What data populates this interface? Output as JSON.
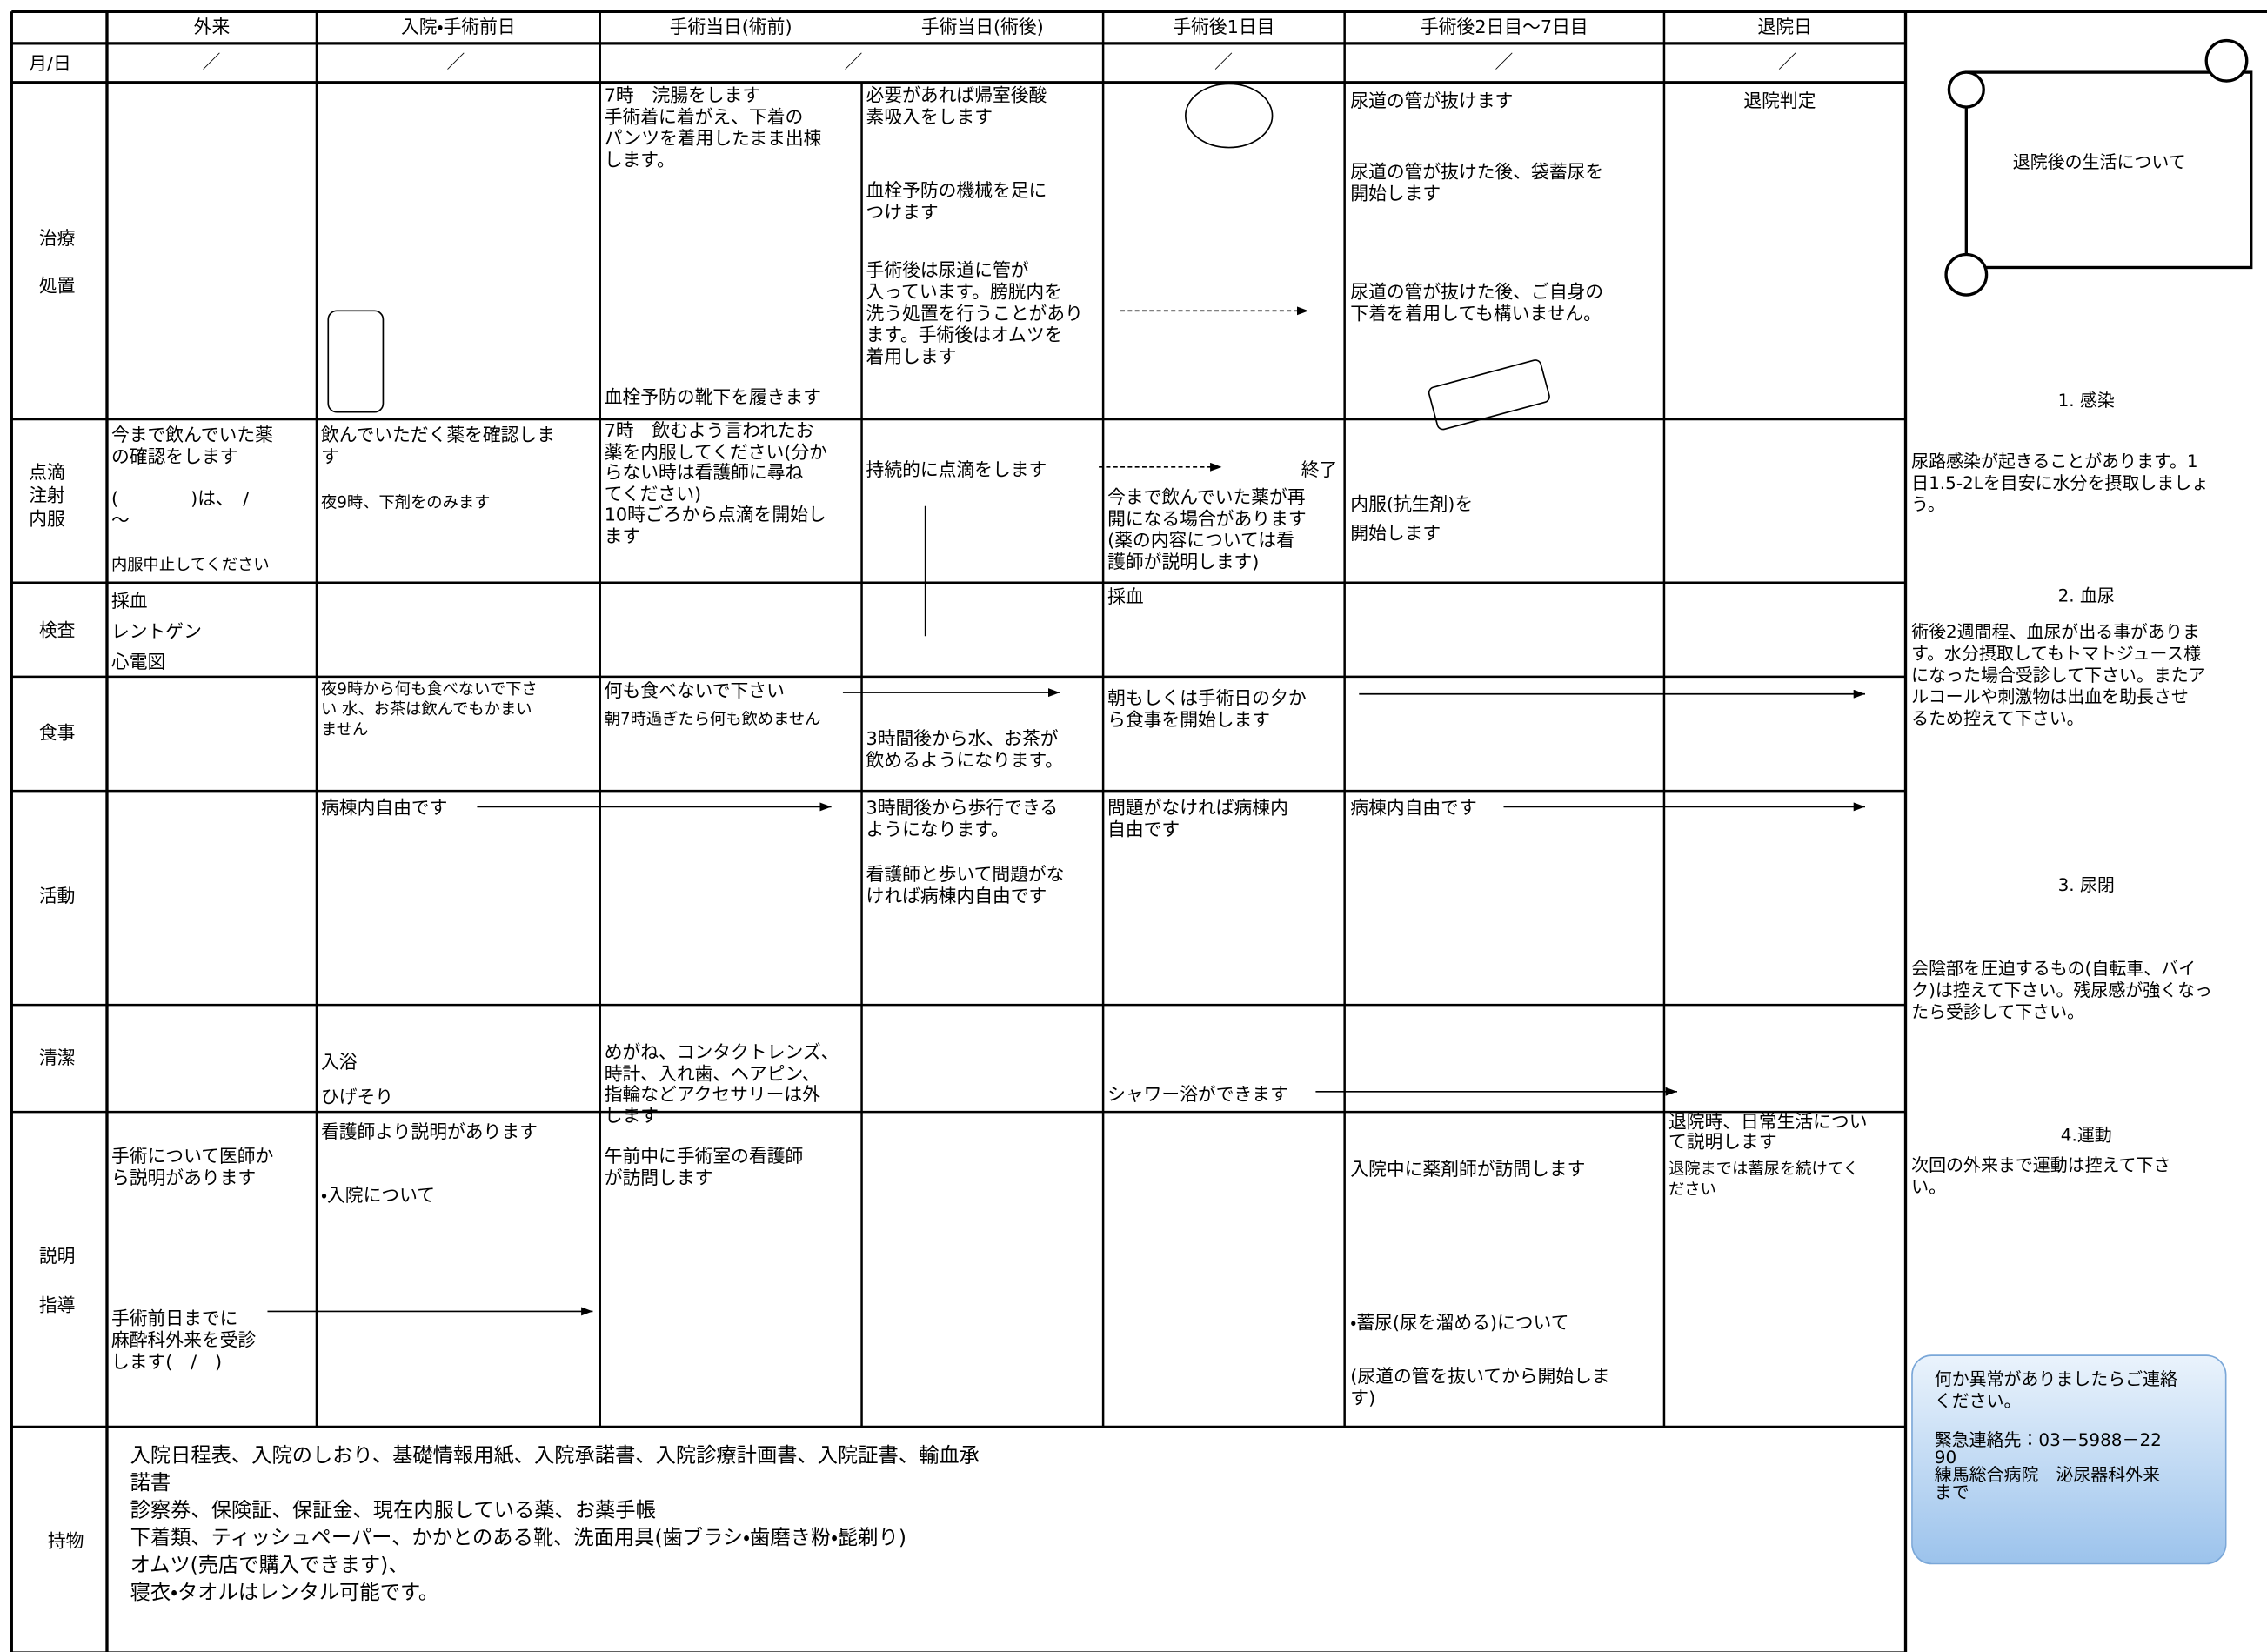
{
  "columns": [
    "外来",
    "入院・手術前日",
    "手術当日(術前)",
    "手術当日(術後)",
    "手術後1日目",
    "手術後2日目～7日目",
    "退院日"
  ],
  "date_row": {
    "label": "月/日",
    "marks": [
      "／",
      "／",
      "／",
      "／",
      "／",
      "／"
    ]
  },
  "schedule": [
    {
      "label": "治療\n処置",
      "entries": [
        "7時　浣腸をします\n手術着に着がえ、下着の\nパンツを着用したまま出棟\nします。",
        "血栓予防の靴下を履きます",
        "必要があれば帰室後酸\n素吸入をします",
        "血栓予防の機械を足に\nつけます",
        "手術後は尿道に管が\n入っています。膀胱内を\n洗う処置を行うことがあり\nます。手術後はオムツを\n着用します",
        "尿道の管が抜けます",
        "尿道の管が抜けた後、袋蓄尿を\n開始します",
        "尿道の管が抜けた後、ご自身の\n下着を着用しても構いません。",
        "退院判定"
      ]
    },
    {
      "label": "点滴\n注射\n内服",
      "entries": [
        "今まで飲んでいた薬\nの確認をします",
        "(　　　　)は、　/\n～",
        "内服中止してください",
        "飲んでいただく薬を確認しま\nす",
        "夜9時、下剤をのみます",
        "7時　飲むよう言われたお\n薬を内服してください(分か\nらない時は看護師に尋ね\nてください)\n10時ごろから点滴を開始し\nます",
        "持続的に点滴をします",
        "終了",
        "今まで飲んでいた薬が再\n開になる場合があります\n(薬の内容については看\n護師が説明します)",
        "内服(抗生剤)を\n開始します"
      ]
    },
    {
      "label": "検査",
      "entries": [
        "採血\nレントゲン\n心電図",
        "採血"
      ]
    },
    {
      "label": "食事",
      "entries": [
        "夜9時から何も食べないで下さ\nい 水、お茶は飲んでもかまい\nません",
        "何も食べないで下さい",
        "朝7時過ぎたら何も飲めません",
        "3時間後から水、お茶が\n飲めるようになります。",
        "朝もしくは手術日の夕か\nら食事を開始します"
      ]
    },
    {
      "label": "活動",
      "entries": [
        "病棟内自由です",
        "3時間後から歩行できる\nようになります。",
        "看護師と歩いて問題がな\nければ病棟内自由です",
        "問題がなければ病棟内\n自由です",
        "病棟内自由です"
      ]
    },
    {
      "label": "清潔",
      "entries": [
        "入浴",
        "ひげそり",
        "めがね、コンタクトレンズ、\n時計、入れ歯、ヘアピン、\n指輪などアクセサリーは外\nします",
        "シャワー浴ができます"
      ]
    },
    {
      "label": "説明\n指導",
      "entries": [
        "手術について医師か\nら説明があります",
        "手術前日までに\n麻酔科外来を受診\nします(　/　)",
        "看護師より説明があります",
        "・入院について",
        "午前中に手術室の看護師\nが訪問します",
        "入院中に薬剤師が訪問します",
        "・蓄尿(尿を溜める)について",
        "(尿道の管を抜いてから開始しま\nす)",
        "退院時、日常生活につい\nて説明します",
        "退院までは蓄尿を続けてく\nださい"
      ]
    },
    {
      "label": "持物",
      "entries": [
        "入院日程表、入院のしおり、基礎情報用紙、入院承諾書、入院診療計画書、入院証書、輸血承\n諾書\n診察券、保険証、保証金、現在内服している薬、お薬手帳\n下着類、ティッシュペーパー、かかとのある靴、洗面用具(歯ブラシ・歯磨き粉・髭剃り)\nオムツ(売店で購入できます)、\n寝衣・タオルはレンタル可能です。"
      ]
    }
  ],
  "side_panel": {
    "title": "退院後の生活について",
    "topics": [
      {
        "heading": "1. 感染",
        "text": "尿路感染が起きることがあります。1\n日1.5-2Lを目安に水分を摂取しましょ\nう。"
      },
      {
        "heading": "2. 血尿",
        "text": "術後2週間程、血尿が出る事がありま\nす。水分摂取してもトマトジュース様\nになった場合受診して下さい。またア\nルコールや刺激物は出血を助長させ\nるため控えて下さい。"
      },
      {
        "heading": "3. 尿閉",
        "text": "会陰部を圧迫するもの(自転車、バイ\nク)は控えて下さい。残尿感が強くなっ\nたら受診して下さい。"
      },
      {
        "heading": "4.運動",
        "text": "次回の外来まで運動は控えて下さ\nい。"
      }
    ],
    "contact": {
      "note": "何か異常がありましたらご連絡\nください。",
      "details": "緊急連絡先：03－5988－22\n90\n練馬総合病院　泌尿器科外来\nまで"
    }
  }
}
